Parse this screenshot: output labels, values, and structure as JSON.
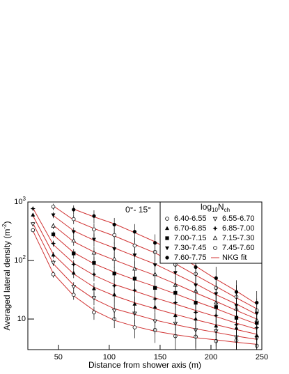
{
  "chart_data": {
    "type": "scatter",
    "x_label": "Distance from shower axis (m)",
    "y_label": [
      "Averaged lateral density (m",
      "-2",
      ")"
    ],
    "annotation": "0°- 15°",
    "legend_title": [
      "log",
      "10",
      "N",
      "ch"
    ],
    "fit_label": "NKG fit",
    "fit_color": "#d03030",
    "marker_color": "#000000",
    "log_y": true,
    "xlim": [
      20,
      250
    ],
    "ylim": [
      3,
      1000
    ],
    "xticks": [
      50,
      100,
      150,
      200,
      250
    ],
    "yticks": [
      {
        "value": 10,
        "label": "10"
      },
      {
        "value": 100,
        "label": "10",
        "exponent": "2"
      },
      {
        "value": 1000,
        "label": "10",
        "exponent": "3"
      }
    ],
    "x": [
      25,
      45,
      65,
      85,
      105,
      125,
      145,
      165,
      185,
      205,
      225,
      245
    ],
    "series": [
      {
        "name": "6.40-6.55",
        "marker": "circle-open",
        "values": [
          330,
          58,
          26,
          13,
          10,
          7.2,
          6.5,
          5.1,
          5.0,
          4.2,
          4.3,
          3.5
        ],
        "errors": [
          26,
          7,
          4.7,
          3.3,
          3,
          2.5,
          2.6,
          2.3,
          2.5,
          2.3,
          2.6,
          2.1
        ],
        "fit": [
          320,
          60,
          25,
          14,
          9.5,
          7.5,
          6.2,
          5.4,
          4.8,
          4.4,
          4.0,
          3.7
        ]
      },
      {
        "name": "6.55-6.70",
        "marker": "triangle-down-open",
        "values": [
          420,
          92,
          36,
          23,
          14,
          12.5,
          9.2,
          8.4,
          6.5,
          6.2,
          4.9,
          4.7
        ],
        "errors": [
          34,
          11,
          6.5,
          5.8,
          4.2,
          4.4,
          3.7,
          3.8,
          3.3,
          3.4,
          2.9,
          2.8
        ],
        "fit": [
          432,
          88,
          38,
          22,
          15,
          12,
          9.6,
          8.0,
          6.8,
          5.9,
          5.1,
          4.5
        ]
      },
      {
        "name": "6.70-6.85",
        "marker": "triangle-up",
        "values": [
          600,
          124,
          61,
          33,
          26,
          18,
          16,
          11.5,
          10,
          7.6,
          7.0,
          5.2
        ],
        "errors": [
          48,
          15,
          11,
          8.3,
          7.8,
          6.3,
          6.4,
          5.2,
          5,
          4.2,
          4.2,
          3.1
        ],
        "fit": [
          582,
          128,
          59,
          35,
          25,
          19,
          15,
          12,
          9.7,
          8.0,
          6.6,
          5.5
        ]
      },
      {
        "name": "6.85-7.00",
        "marker": "star",
        "values": [
          770,
          195,
          86,
          58,
          37,
          31,
          22,
          19,
          13,
          11.5,
          8.0,
          7.1
        ],
        "errors": [
          62,
          23,
          15,
          14,
          11,
          11,
          8.8,
          8.6,
          6.5,
          6.3,
          4.8,
          4.3
        ],
        "fit": [
          785,
          187,
          90,
          56,
          39,
          30,
          23,
          18,
          14,
          11,
          8.5,
          6.7
        ]
      },
      {
        "name": "7.00-7.15",
        "marker": "square",
        "values": [
          null,
          280,
          132,
          91,
          60,
          49,
          34,
          28,
          19,
          16,
          10.5,
          8.6
        ],
        "errors": [
          null,
          34,
          24,
          23,
          18,
          17,
          14,
          13,
          9.5,
          8.8,
          6.3,
          5.2
        ],
        "fit": [
          null,
          274,
          137,
          88,
          63,
          47,
          36,
          27,
          20,
          15,
          11,
          8.2
        ]
      },
      {
        "name": "7.15-7.30",
        "marker": "triangle-up-open",
        "values": [
          null,
          390,
          218,
          135,
          106,
          72,
          58,
          38,
          30,
          19,
          15,
          9.5
        ],
        "errors": [
          null,
          47,
          39,
          34,
          32,
          25,
          23,
          17,
          15,
          10,
          9,
          5.7
        ],
        "fit": [
          null,
          401,
          210,
          140,
          102,
          75,
          56,
          40,
          28,
          20,
          14,
          10
        ]
      },
      {
        "name": "7.30-7.45",
        "marker": "triangle-down",
        "values": [
          null,
          600,
          310,
          230,
          158,
          124,
          84,
          62,
          38,
          27,
          17,
          12.5
        ],
        "errors": [
          null,
          72,
          56,
          58,
          47,
          43,
          34,
          28,
          19,
          15,
          10,
          7.5
        ],
        "fit": [
          null,
          586,
          322,
          222,
          164,
          119,
          87,
          59,
          40,
          26,
          18,
          12
        ]
      },
      {
        "name": "7.45-7.60",
        "marker": "circle-open",
        "values": [
          null,
          830,
          510,
          340,
          272,
          180,
          140,
          85,
          59,
          34,
          24,
          14
        ],
        "errors": [
          null,
          100,
          92,
          85,
          82,
          63,
          56,
          38,
          30,
          19,
          14,
          8.4
        ],
        "fit": [
          null,
          857,
          493,
          352,
          263,
          188,
          135,
          88,
          56,
          36,
          23,
          15
        ]
      },
      {
        "name": "7.60-7.75",
        "marker": "circle",
        "values": [
          null,
          null,
          740,
          575,
          410,
          310,
          200,
          136,
          77,
          50,
          29,
          19
        ],
        "errors": [
          null,
          null,
          133,
          144,
          123,
          109,
          80,
          61,
          39,
          28,
          17,
          11
        ],
        "fit": [
          null,
          null,
          755,
          557,
          423,
          299,
          209,
          131,
          80,
          48,
          30,
          18
        ]
      }
    ]
  }
}
